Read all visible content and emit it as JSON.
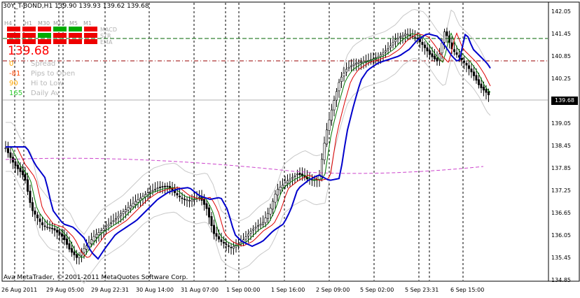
{
  "header": {
    "title": "30Y_T-BOND,H1  139.90 139.93 139.62 139.68"
  },
  "timeframes": [
    "H4",
    "H1",
    "M30",
    "M15",
    "M5",
    "M1"
  ],
  "indicator_names": [
    "MACD",
    "STR",
    "EMA"
  ],
  "current_price": "139.68",
  "stats": [
    {
      "value": "0",
      "label": "Spread",
      "color": "#ffa500"
    },
    {
      "value": "-81",
      "label": "Pips to Open",
      "color": "#ff4500"
    },
    {
      "value": "90",
      "label": "Hi to Low",
      "color": "#ffa500"
    },
    {
      "value": "165",
      "label": "Daily Av",
      "color": "#32cd32"
    }
  ],
  "price_axis": [
    "142.05",
    "141.45",
    "140.85",
    "140.25",
    "139.68",
    "139.05",
    "138.45",
    "137.85",
    "137.25",
    "136.65",
    "136.05",
    "135.45",
    "134.85"
  ],
  "price_tag": "139.68",
  "time_axis": [
    "26 Aug 2011",
    "29 Aug 05:00",
    "29 Aug 22:31",
    "30 Aug 14:00",
    "31 Aug 07:00",
    "1 Sep 00:00",
    "1 Sep 16:00",
    "2 Sep 09:00",
    "5 Sep 02:00",
    "5 Sep 23:31",
    "6 Sep 15:00"
  ],
  "copyright": "Ava MetaTrader, © 2001-2011 MetaQuotes Software Corp.",
  "colors": {
    "bull": "#ffffff",
    "bear": "#000000",
    "slow_ma": "#0000cc",
    "mid_ma": "#dd0000",
    "fast_ma": "#007700",
    "long_ma": "#cc44cc",
    "bands": "#c8c8c8",
    "level_green": "#006600",
    "level_red": "#990000"
  }
}
